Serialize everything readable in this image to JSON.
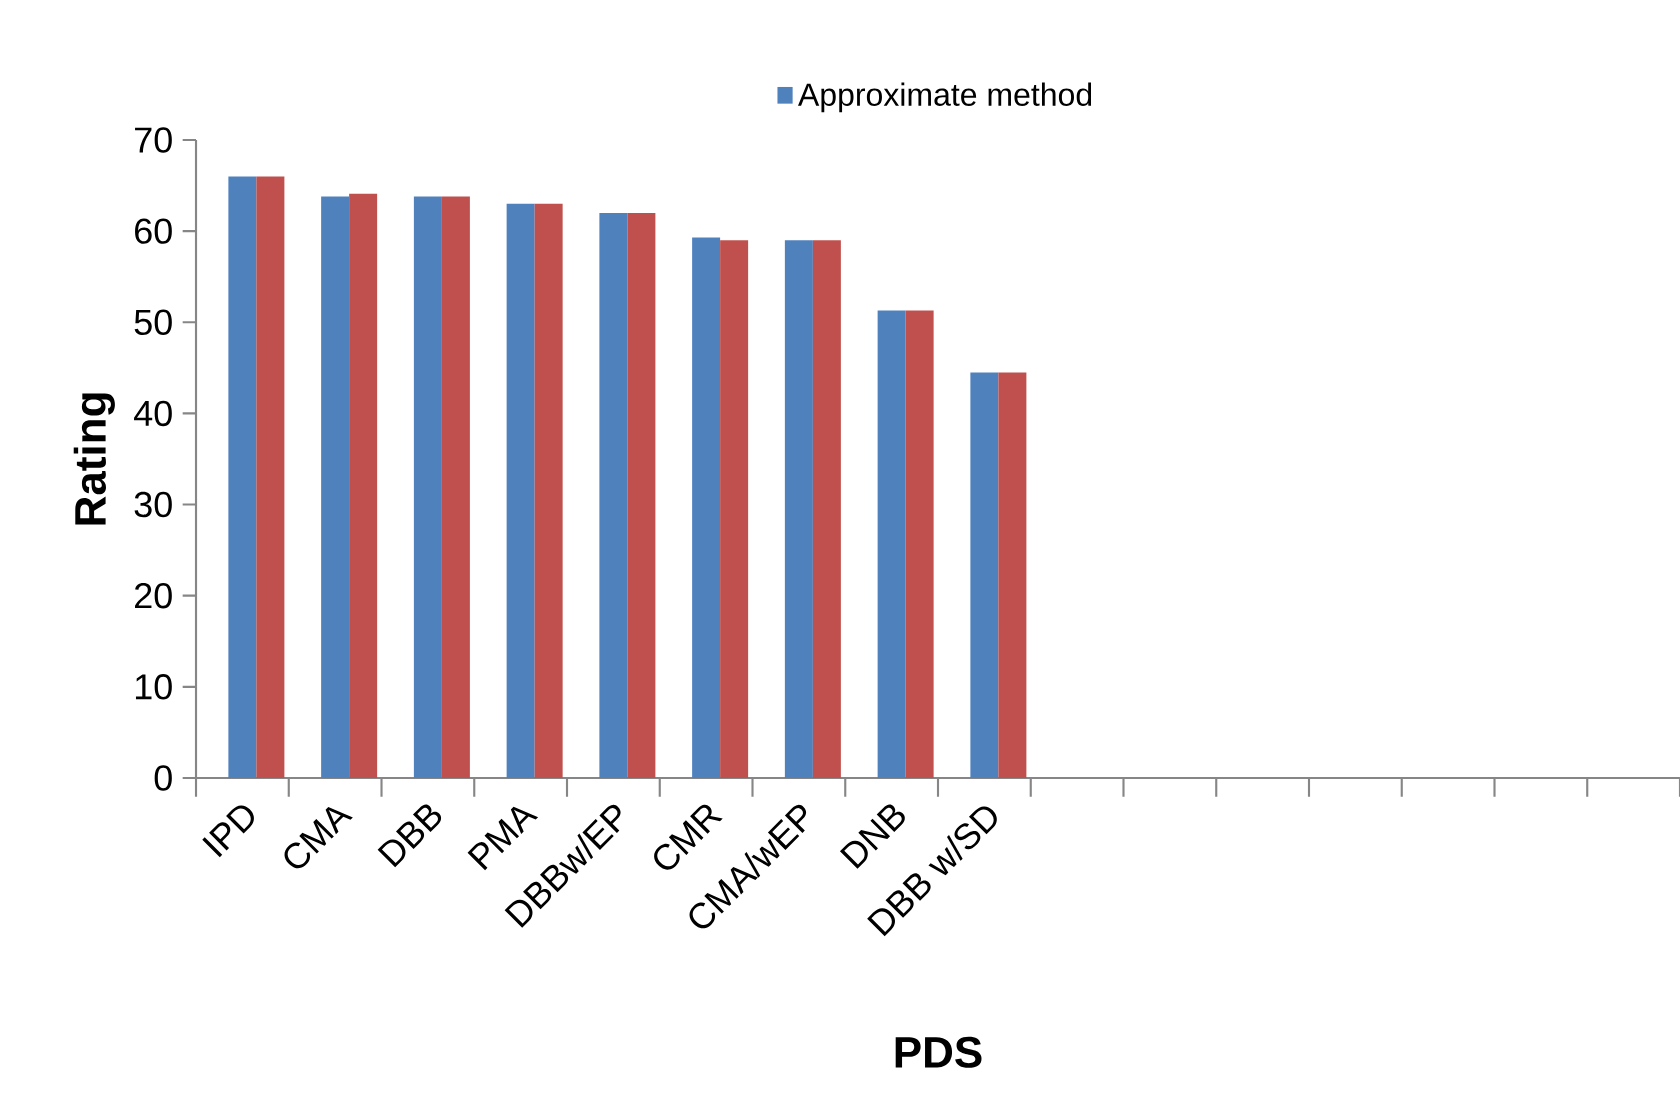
{
  "chart_data": {
    "type": "bar",
    "xlabel": "PDS",
    "ylabel": "Rating",
    "categories": [
      "IPD",
      "CMA",
      "DBB",
      "PMA",
      "DBBw/EP",
      "CMR",
      "CMA/wEP",
      "DNB",
      "DBB w/SD",
      null,
      null,
      null,
      null,
      null,
      null,
      null
    ],
    "series": [
      {
        "name": "Approximate method",
        "color": "#4f81bd",
        "values": [
          66,
          63.8,
          63.8,
          63,
          62,
          59.3,
          59,
          51.3,
          44.5,
          null,
          null,
          null,
          null,
          null,
          null,
          null
        ]
      },
      {
        "color": "#c0504d",
        "values": [
          66,
          64.1,
          63.8,
          63,
          62,
          59,
          59,
          51.3,
          44.5,
          null,
          null,
          null,
          null,
          null,
          null,
          null
        ]
      }
    ],
    "ylim": [
      0,
      70
    ],
    "yticks": [
      0,
      10,
      20,
      30,
      40,
      50,
      60,
      70
    ],
    "grid": false,
    "legend": "top"
  }
}
